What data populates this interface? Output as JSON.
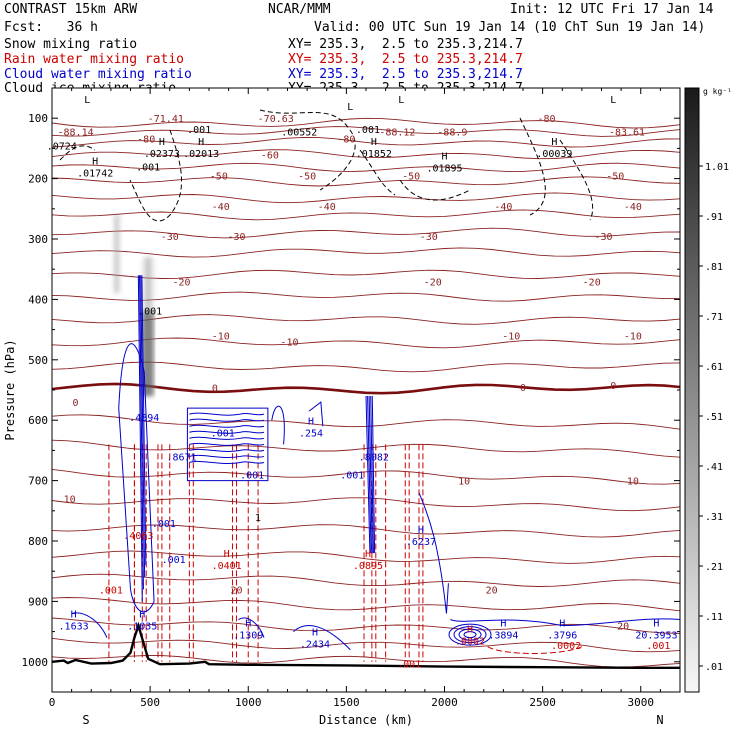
{
  "header": {
    "title_left": "CONTRAST 15km ARW",
    "title_center": "NCAR/MMM",
    "init": "Init: 12 UTC Fri 17 Jan 14",
    "fcst": "Fcst:   36 h",
    "valid": "Valid: 00 UTC Sun 19 Jan 14 (10 ChT Sun 19 Jan 14)",
    "fields": [
      {
        "name": "Snow mixing ratio",
        "xy": "XY= 235.3,  2.5 to 235.3,214.7",
        "color": "#000000"
      },
      {
        "name": "Rain water mixing ratio",
        "xy": "XY= 235.3,  2.5 to 235.3,214.7",
        "color": "#cc0000"
      },
      {
        "name": "Cloud water mixing ratio",
        "xy": "XY= 235.3,  2.5 to 235.3,214.7",
        "color": "#0000cc"
      },
      {
        "name": "Cloud ice mixing ratio",
        "xy": "XY= 235.3,  2.5 to 235.3,214.7",
        "color": "#000000"
      }
    ]
  },
  "chart_data": {
    "type": "contour",
    "xlabel": "Distance (km)",
    "ylabel": "Pressure (hPa)",
    "x_range": [
      0,
      3200
    ],
    "y_range": [
      1050,
      50
    ],
    "x_ticks": [
      0,
      500,
      1000,
      1500,
      2000,
      2500,
      3000
    ],
    "y_ticks": [
      100,
      200,
      300,
      400,
      500,
      600,
      700,
      800,
      900,
      1000
    ],
    "x_end_labels": {
      "left": "S",
      "right": "N"
    },
    "colorbar": {
      "unit": "g kg⁻¹",
      "ticks": [
        1.01,
        0.91,
        0.81,
        0.71,
        0.61,
        0.51,
        0.41,
        0.31,
        0.21,
        0.11,
        0.01
      ],
      "tick_labels": [
        "1.01",
        ".91",
        ".81",
        ".71",
        ".61",
        ".51",
        ".41",
        ".31",
        ".21",
        ".11",
        ".01"
      ]
    },
    "temperature_labels": [
      {
        "text": "-71.41",
        "x": 580,
        "p": 100
      },
      {
        "text": "-70.63",
        "x": 1140,
        "p": 100
      },
      {
        "text": "-80",
        "x": 2520,
        "p": 100
      },
      {
        "text": "-88.14",
        "x": 120,
        "p": 122
      },
      {
        "text": "-88.12",
        "x": 1760,
        "p": 122
      },
      {
        "text": "-88.9",
        "x": 2040,
        "p": 122
      },
      {
        "text": "-83.61",
        "x": 2930,
        "p": 122
      },
      {
        "text": "-80",
        "x": 480,
        "p": 134
      },
      {
        "text": "-80",
        "x": 1500,
        "p": 134
      },
      {
        "text": "-60",
        "x": 1110,
        "p": 160
      },
      {
        "text": "-50",
        "x": 850,
        "p": 195
      },
      {
        "text": "-50",
        "x": 1300,
        "p": 195
      },
      {
        "text": "-50",
        "x": 1830,
        "p": 195
      },
      {
        "text": "-50",
        "x": 2870,
        "p": 195
      },
      {
        "text": "-40",
        "x": 860,
        "p": 245
      },
      {
        "text": "-40",
        "x": 1400,
        "p": 245
      },
      {
        "text": "-40",
        "x": 2300,
        "p": 245
      },
      {
        "text": "-40",
        "x": 2960,
        "p": 245
      },
      {
        "text": "-30",
        "x": 600,
        "p": 295
      },
      {
        "text": "-30",
        "x": 940,
        "p": 295
      },
      {
        "text": "-30",
        "x": 1920,
        "p": 295
      },
      {
        "text": "-30",
        "x": 2810,
        "p": 295
      },
      {
        "text": "-20",
        "x": 660,
        "p": 370
      },
      {
        "text": "-20",
        "x": 1940,
        "p": 370
      },
      {
        "text": "-20",
        "x": 2750,
        "p": 370
      },
      {
        "text": "-10",
        "x": 860,
        "p": 460
      },
      {
        "text": "-10",
        "x": 1210,
        "p": 470
      },
      {
        "text": "-10",
        "x": 2340,
        "p": 460
      },
      {
        "text": "-10",
        "x": 2960,
        "p": 460
      },
      {
        "text": "0",
        "x": 120,
        "p": 570
      },
      {
        "text": "0",
        "x": 830,
        "p": 546
      },
      {
        "text": "0",
        "x": 2400,
        "p": 545
      },
      {
        "text": "0",
        "x": 2860,
        "p": 542
      },
      {
        "text": "10",
        "x": 90,
        "p": 730
      },
      {
        "text": "10",
        "x": 2100,
        "p": 700
      },
      {
        "text": "10",
        "x": 2960,
        "p": 700
      },
      {
        "text": "20",
        "x": 940,
        "p": 880
      },
      {
        "text": "20",
        "x": 2240,
        "p": 880
      },
      {
        "text": "20",
        "x": 2910,
        "p": 940
      }
    ],
    "max_min_labels": [
      {
        "mark": "L",
        "text": "",
        "x": 180,
        "p": 88,
        "color": "#000000"
      },
      {
        "mark": "L",
        "text": "",
        "x": 1780,
        "p": 88,
        "color": "#000000"
      },
      {
        "mark": "L",
        "text": "",
        "x": 2860,
        "p": 88,
        "color": "#000000"
      },
      {
        "mark": "L",
        "text": "",
        "x": 1520,
        "p": 100,
        "color": "#000000"
      },
      {
        "mark": "",
        "text": ".001",
        "x": 750,
        "p": 118,
        "color": "#000000"
      },
      {
        "mark": "",
        "text": ".00552",
        "x": 1260,
        "p": 122,
        "color": "#000000"
      },
      {
        "mark": "",
        "text": ".001",
        "x": 1610,
        "p": 118,
        "color": "#000000"
      },
      {
        "mark": "",
        "text": ".0724",
        "x": 50,
        "p": 145,
        "color": "#000000"
      },
      {
        "mark": "H",
        "text": ".02373",
        "x": 560,
        "p": 158,
        "color": "#000000"
      },
      {
        "mark": "H",
        "text": ".02013",
        "x": 760,
        "p": 158,
        "color": "#000000"
      },
      {
        "mark": "H",
        "text": ".01852",
        "x": 1640,
        "p": 158,
        "color": "#000000"
      },
      {
        "mark": "H",
        "text": ".00039",
        "x": 2560,
        "p": 158,
        "color": "#000000"
      },
      {
        "mark": "H",
        "text": ".01742",
        "x": 220,
        "p": 190,
        "color": "#000000"
      },
      {
        "mark": "H",
        "text": ".01895",
        "x": 2000,
        "p": 182,
        "color": "#000000"
      },
      {
        "mark": "",
        "text": ".001",
        "x": 490,
        "p": 180,
        "color": "#000000"
      },
      {
        "mark": "",
        "text": ".001",
        "x": 500,
        "p": 418,
        "color": "#000000"
      },
      {
        "mark": "",
        "text": ".4894",
        "x": 470,
        "p": 595,
        "color": "#0000cc"
      },
      {
        "mark": "",
        "text": ".001",
        "x": 870,
        "p": 620,
        "color": "#0000cc"
      },
      {
        "mark": "",
        "text": ".8671",
        "x": 660,
        "p": 660,
        "color": "#0000cc"
      },
      {
        "mark": "",
        "text": ".001",
        "x": 1020,
        "p": 690,
        "color": "#0000cc"
      },
      {
        "mark": "H",
        "text": ".254",
        "x": 1320,
        "p": 620,
        "color": "#0000cc"
      },
      {
        "mark": "",
        "text": ".8082",
        "x": 1640,
        "p": 660,
        "color": "#0000cc"
      },
      {
        "mark": "",
        "text": ".001",
        "x": 1530,
        "p": 690,
        "color": "#0000cc"
      },
      {
        "mark": "",
        "text": "1",
        "x": 1050,
        "p": 760,
        "color": "#000000"
      },
      {
        "mark": "H",
        "text": ".6237",
        "x": 1880,
        "p": 800,
        "color": "#0000cc"
      },
      {
        "mark": "",
        "text": ".001",
        "x": 570,
        "p": 770,
        "color": "#0000cc"
      },
      {
        "mark": "",
        "text": ".001",
        "x": 620,
        "p": 830,
        "color": "#0000cc"
      },
      {
        "mark": "",
        "text": ".4063",
        "x": 440,
        "p": 790,
        "color": "#cc0000"
      },
      {
        "mark": "H",
        "text": ".0401",
        "x": 890,
        "p": 840,
        "color": "#cc0000"
      },
      {
        "mark": "H",
        "text": ".0895",
        "x": 1610,
        "p": 840,
        "color": "#cc0000"
      },
      {
        "mark": "",
        "text": ".001",
        "x": 300,
        "p": 880,
        "color": "#cc0000"
      },
      {
        "mark": "H",
        "text": ".1633",
        "x": 110,
        "p": 940,
        "color": "#0000cc"
      },
      {
        "mark": "H",
        "text": ".1035",
        "x": 460,
        "p": 940,
        "color": "#0000cc"
      },
      {
        "mark": "H",
        "text": ".1309",
        "x": 1000,
        "p": 955,
        "color": "#0000cc"
      },
      {
        "mark": "H",
        "text": ".2434",
        "x": 1340,
        "p": 970,
        "color": "#0000cc"
      },
      {
        "mark": "H",
        "text": ".3894",
        "x": 2300,
        "p": 955,
        "color": "#0000cc"
      },
      {
        "mark": "H",
        "text": ".3796",
        "x": 2600,
        "p": 955,
        "color": "#0000cc"
      },
      {
        "mark": "H",
        "text": "20.3953",
        "x": 3080,
        "p": 955,
        "color": "#0000cc"
      },
      {
        "mark": "H",
        "text": ".0002",
        "x": 2130,
        "p": 965,
        "color": "#cc0000"
      },
      {
        "mark": "",
        "text": ".0002",
        "x": 2620,
        "p": 972,
        "color": "#cc0000"
      },
      {
        "mark": "",
        "text": ".001",
        "x": 3090,
        "p": 972,
        "color": "#cc0000"
      },
      {
        "mark": "",
        "text": ".001",
        "x": 1820,
        "p": 1003,
        "color": "#cc0000"
      }
    ],
    "terrain_surface": [
      [
        0,
        1000
      ],
      [
        60,
        998
      ],
      [
        80,
        1002
      ],
      [
        120,
        997
      ],
      [
        200,
        1003
      ],
      [
        300,
        1002
      ],
      [
        360,
        998
      ],
      [
        400,
        985
      ],
      [
        420,
        960
      ],
      [
        440,
        940
      ],
      [
        460,
        962
      ],
      [
        490,
        995
      ],
      [
        550,
        1004
      ],
      [
        700,
        1003
      ],
      [
        780,
        1000
      ],
      [
        800,
        1004
      ],
      [
        1000,
        1005
      ],
      [
        1500,
        1006
      ],
      [
        2000,
        1008
      ],
      [
        2500,
        1009
      ],
      [
        3000,
        1010
      ],
      [
        3200,
        1010
      ]
    ]
  }
}
